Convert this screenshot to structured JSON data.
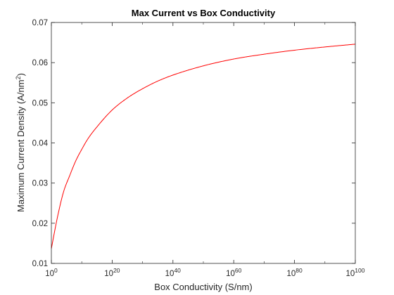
{
  "chart_data": {
    "type": "line",
    "title": "Max Current vs Box Conductivity",
    "xlabel": "Box Conductivity (S/nm)",
    "ylabel": {
      "text": "Maximum Current Density (A/nm",
      "superscript": "2",
      "suffix": ")"
    },
    "x_scale": "log",
    "xlim": [
      1,
      1e+100
    ],
    "ylim": [
      0.01,
      0.07
    ],
    "x_ticks": [
      {
        "base": "10",
        "exp": "0",
        "value": 1
      },
      {
        "base": "10",
        "exp": "20",
        "value": 1e+20
      },
      {
        "base": "10",
        "exp": "40",
        "value": 1e+40
      },
      {
        "base": "10",
        "exp": "60",
        "value": 1e+60
      },
      {
        "base": "10",
        "exp": "80",
        "value": 1e+80
      },
      {
        "base": "10",
        "exp": "100",
        "value": 1e+100
      }
    ],
    "y_ticks": [
      "0.01",
      "0.02",
      "0.03",
      "0.04",
      "0.05",
      "0.06",
      "0.07"
    ],
    "grid": false,
    "series": [
      {
        "color": "#ff0000",
        "x": [
          1,
          100.0,
          10000.0,
          1000000.0,
          100000000.0,
          10000000000.0,
          1000000000000.0,
          1000000000000000.0,
          1e+20,
          1e+25,
          1e+30,
          1e+35,
          1e+40,
          1e+50,
          1e+60,
          1e+70,
          1e+80,
          1e+90,
          1e+100
        ],
        "y": [
          0.0137,
          0.0215,
          0.0278,
          0.0318,
          0.0355,
          0.0384,
          0.041,
          0.044,
          0.0482,
          0.0512,
          0.0535,
          0.0554,
          0.0569,
          0.0592,
          0.0609,
          0.0621,
          0.0631,
          0.0639,
          0.0646
        ]
      }
    ]
  }
}
